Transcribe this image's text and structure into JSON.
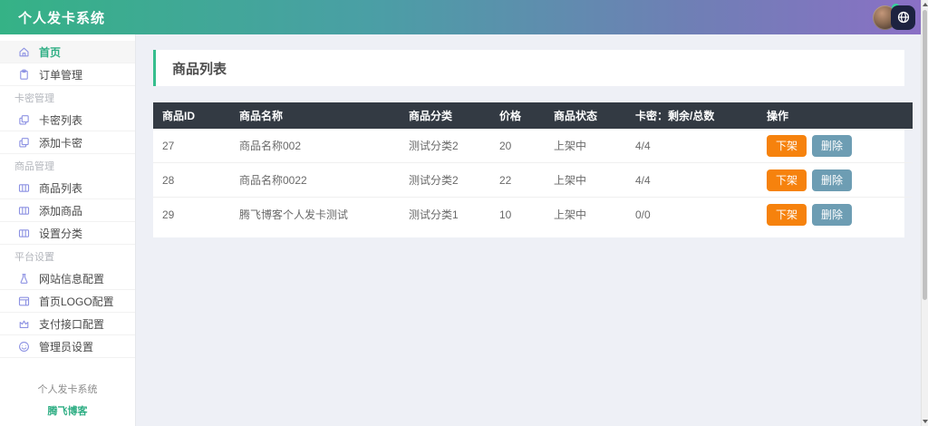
{
  "header": {
    "title": "个人发卡系统",
    "gradient_from": "#35B286",
    "gradient_to": "#8A70C5",
    "user": {
      "avatar": "user-avatar",
      "status": "online",
      "badge_icon": "globe-icon"
    }
  },
  "sidebar": {
    "items": [
      {
        "type": "item",
        "label": "首页",
        "icon": "home-icon",
        "active": true
      },
      {
        "type": "item",
        "label": "订单管理",
        "icon": "clipboard-icon",
        "active": false
      },
      {
        "type": "section",
        "label": "卡密管理"
      },
      {
        "type": "item",
        "label": "卡密列表",
        "icon": "copy-icon",
        "active": false
      },
      {
        "type": "item",
        "label": "添加卡密",
        "icon": "copy-icon",
        "active": false
      },
      {
        "type": "section",
        "label": "商品管理"
      },
      {
        "type": "item",
        "label": "商品列表",
        "icon": "columns-icon",
        "active": false
      },
      {
        "type": "item",
        "label": "添加商品",
        "icon": "columns-icon",
        "active": false
      },
      {
        "type": "item",
        "label": "设置分类",
        "icon": "columns-icon",
        "active": false
      },
      {
        "type": "section",
        "label": "平台设置"
      },
      {
        "type": "item",
        "label": "网站信息配置",
        "icon": "flask-icon",
        "active": false
      },
      {
        "type": "item",
        "label": "首页LOGO配置",
        "icon": "window-icon",
        "active": false
      },
      {
        "type": "item",
        "label": "支付接口配置",
        "icon": "crown-icon",
        "active": false
      },
      {
        "type": "item",
        "label": "管理员设置",
        "icon": "smiley-icon",
        "active": false
      }
    ],
    "footer": {
      "line1": "个人发卡系统",
      "line2": "腾飞博客"
    }
  },
  "main": {
    "page_title": "商品列表",
    "table": {
      "columns": [
        "商品ID",
        "商品名称",
        "商品分类",
        "价格",
        "商品状态",
        "卡密：剩余/总数",
        "操作"
      ],
      "rows": [
        {
          "id": "27",
          "name": "商品名称002",
          "category": "测试分类2",
          "price": "20",
          "status": "上架中",
          "cards": "4/4"
        },
        {
          "id": "28",
          "name": "商品名称0022",
          "category": "测试分类2",
          "price": "22",
          "status": "上架中",
          "cards": "4/4"
        },
        {
          "id": "29",
          "name": "腾飞博客个人发卡测试",
          "category": "测试分类1",
          "price": "10",
          "status": "上架中",
          "cards": "0/0"
        }
      ],
      "actions": {
        "off_shelf": "下架",
        "delete": "删除"
      }
    }
  },
  "colors": {
    "accent_green": "#2FAE84",
    "card_border_green": "#36BE8E",
    "button_orange": "#F6820D",
    "button_teal": "#6D9DB3",
    "table_header_bg": "#333A43",
    "badge_navy": "#1D2240",
    "main_bg": "#EEF0F6"
  }
}
